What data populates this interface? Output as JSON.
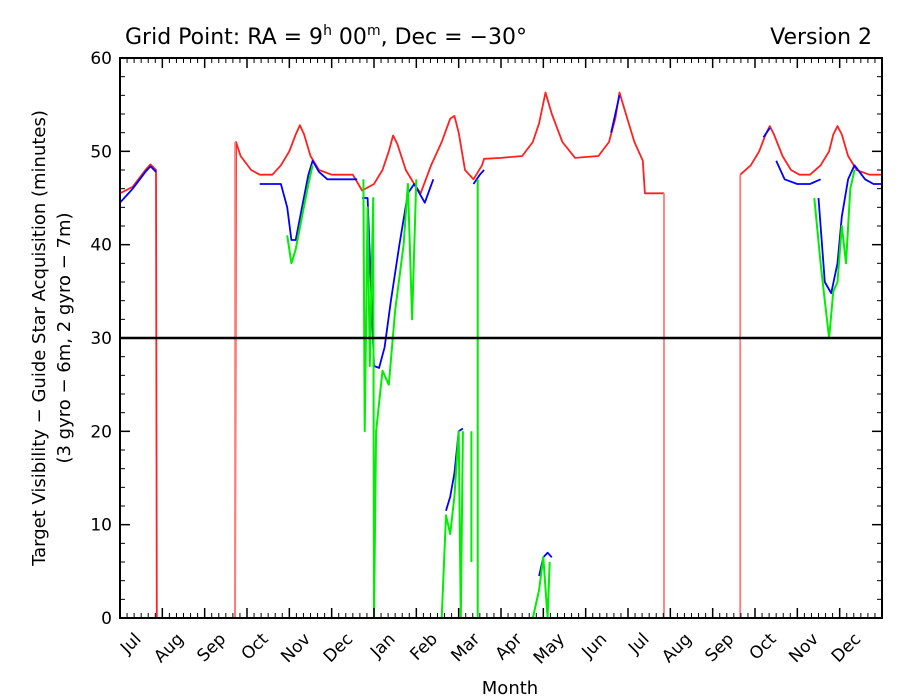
{
  "chart_data": {
    "type": "line",
    "title": {
      "prefix": "Grid Point: RA = 9",
      "h_sup": "h",
      "mid": " 00",
      "m_sup": "m",
      "suffix": ", Dec = −30°"
    },
    "version_label": "Version 2",
    "xlabel": "Month",
    "ylabel_line1": "Target Visibility − Guide Star Acquisition (minutes)",
    "ylabel_line2": "(3 gyro − 6m, 2 gyro − 7m)",
    "xlim": [
      0,
      18
    ],
    "ylim": [
      0,
      60
    ],
    "month_ticks": [
      "Jul",
      "Aug",
      "Sep",
      "Oct",
      "Nov",
      "Dec",
      "Jan",
      "Feb",
      "Mar",
      "Apr",
      "May",
      "Jun",
      "Jul",
      "Aug",
      "Sep",
      "Oct",
      "Nov",
      "Dec"
    ],
    "y_ticks": [
      0,
      10,
      20,
      30,
      40,
      50,
      60
    ],
    "threshold": 30,
    "colors": {
      "red": "#ff2020",
      "red_light": "#ff7a7a",
      "blue": "#0000ff",
      "green": "#00ee00",
      "black": "#000000"
    },
    "series": [
      {
        "color": "red",
        "segments": [
          [
            [
              0.0,
              45.5
            ],
            [
              0.3,
              46.2
            ],
            [
              0.6,
              48.0
            ],
            [
              0.72,
              48.6
            ],
            [
              0.85,
              48.0
            ],
            [
              0.87,
              0
            ]
          ],
          [
            [
              0.87,
              0
            ],
            [
              2.72,
              0
            ]
          ],
          [
            [
              2.72,
              0
            ],
            [
              2.74,
              51.0
            ],
            [
              2.85,
              49.5
            ],
            [
              3.1,
              48.0
            ],
            [
              3.3,
              47.5
            ],
            [
              3.6,
              47.5
            ],
            [
              3.8,
              48.5
            ],
            [
              4.0,
              50.0
            ],
            [
              4.15,
              51.8
            ],
            [
              4.25,
              52.8
            ],
            [
              4.35,
              51.8
            ],
            [
              4.5,
              49.5
            ],
            [
              4.7,
              48.0
            ],
            [
              5.0,
              47.5
            ],
            [
              5.5,
              47.5
            ],
            [
              5.72,
              45.8
            ],
            [
              6.0,
              46.5
            ],
            [
              6.2,
              48.0
            ],
            [
              6.35,
              50.0
            ],
            [
              6.45,
              51.7
            ],
            [
              6.55,
              50.8
            ],
            [
              6.75,
              48.0
            ],
            [
              6.95,
              46.5
            ],
            [
              7.1,
              45.5
            ],
            [
              7.35,
              48.5
            ],
            [
              7.6,
              51.0
            ],
            [
              7.8,
              53.5
            ],
            [
              7.9,
              53.8
            ],
            [
              8.0,
              52.0
            ],
            [
              8.15,
              48.0
            ],
            [
              8.35,
              47.0
            ],
            [
              8.55,
              48.5
            ],
            [
              8.6,
              49.2
            ],
            [
              9.0,
              49.3
            ],
            [
              9.5,
              49.5
            ],
            [
              9.75,
              51.0
            ],
            [
              9.9,
              53.0
            ],
            [
              10.05,
              56.3
            ],
            [
              10.2,
              54.0
            ],
            [
              10.45,
              51.0
            ],
            [
              10.75,
              49.3
            ],
            [
              11.3,
              49.5
            ],
            [
              11.55,
              51.0
            ],
            [
              11.7,
              53.5
            ],
            [
              11.8,
              56.3
            ],
            [
              11.95,
              54.0
            ],
            [
              12.15,
              51.0
            ],
            [
              12.35,
              49.0
            ],
            [
              12.4,
              45.5
            ],
            [
              12.85,
              45.5
            ]
          ],
          [
            [
              12.85,
              0
            ],
            [
              14.65,
              0
            ]
          ],
          [
            [
              14.65,
              47.5
            ],
            [
              14.9,
              48.5
            ],
            [
              15.1,
              50.0
            ],
            [
              15.25,
              51.8
            ],
            [
              15.35,
              52.7
            ],
            [
              15.45,
              51.8
            ],
            [
              15.65,
              49.5
            ],
            [
              15.85,
              48.0
            ],
            [
              16.05,
              47.5
            ],
            [
              16.3,
              47.5
            ],
            [
              16.55,
              48.5
            ],
            [
              16.75,
              50.0
            ],
            [
              16.85,
              51.8
            ],
            [
              16.95,
              52.7
            ],
            [
              17.05,
              51.8
            ],
            [
              17.2,
              49.5
            ],
            [
              17.4,
              48.0
            ],
            [
              17.7,
              47.5
            ],
            [
              18.0,
              47.5
            ]
          ]
        ]
      },
      {
        "color": "red_light",
        "segments": [
          [
            [
              2.72,
              0
            ],
            [
              2.72,
              51.0
            ]
          ],
          [
            [
              12.85,
              0
            ],
            [
              12.85,
              45.5
            ]
          ],
          [
            [
              14.65,
              0
            ],
            [
              14.65,
              47.5
            ]
          ],
          [
            [
              18.0,
              0
            ],
            [
              18.0,
              47.5
            ]
          ]
        ]
      },
      {
        "color": "blue",
        "segments": [
          [
            [
              0.0,
              44.5
            ],
            [
              0.3,
              46.0
            ],
            [
              0.6,
              47.8
            ],
            [
              0.72,
              48.4
            ],
            [
              0.85,
              47.8
            ]
          ],
          [
            [
              3.3,
              46.5
            ],
            [
              3.8,
              46.5
            ],
            [
              3.95,
              44.0
            ],
            [
              4.05,
              40.5
            ],
            [
              4.15,
              40.5
            ],
            [
              4.3,
              44.0
            ],
            [
              4.45,
              47.5
            ],
            [
              4.55,
              49.0
            ],
            [
              4.7,
              47.8
            ],
            [
              4.9,
              47.0
            ],
            [
              5.3,
              47.0
            ],
            [
              5.6,
              47.0
            ]
          ],
          [
            [
              5.72,
              45.0
            ],
            [
              5.85,
              45.0
            ],
            [
              6.0,
              27.0
            ],
            [
              6.12,
              26.8
            ],
            [
              6.25,
              29.0
            ],
            [
              6.4,
              34.0
            ],
            [
              6.6,
              40.0
            ],
            [
              6.8,
              45.5
            ],
            [
              6.95,
              46.5
            ],
            [
              7.2,
              44.5
            ],
            [
              7.4,
              47.0
            ]
          ],
          [
            [
              7.7,
              11.5
            ],
            [
              7.8,
              13.0
            ],
            [
              7.9,
              15.5
            ],
            [
              8.0,
              20.0
            ],
            [
              8.1,
              20.3
            ]
          ],
          [
            [
              8.35,
              46.5
            ],
            [
              8.5,
              47.5
            ],
            [
              8.6,
              48.0
            ]
          ],
          [
            [
              9.9,
              4.5
            ],
            [
              10.0,
              6.5
            ],
            [
              10.1,
              7.0
            ],
            [
              10.2,
              6.5
            ]
          ],
          [
            [
              11.6,
              52.0
            ],
            [
              11.8,
              56.0
            ]
          ],
          [
            [
              15.2,
              51.5
            ],
            [
              15.35,
              52.5
            ]
          ],
          [
            [
              15.5,
              49.0
            ],
            [
              15.7,
              47.0
            ],
            [
              16.0,
              46.5
            ],
            [
              16.3,
              46.5
            ],
            [
              16.55,
              47.0
            ]
          ],
          [
            [
              16.5,
              45.0
            ],
            [
              16.65,
              36.0
            ],
            [
              16.8,
              34.8
            ],
            [
              16.95,
              38.0
            ],
            [
              17.05,
              43.0
            ],
            [
              17.2,
              47.0
            ],
            [
              17.35,
              48.5
            ],
            [
              17.6,
              47.0
            ],
            [
              17.8,
              46.5
            ],
            [
              18.0,
              46.5
            ]
          ]
        ]
      },
      {
        "color": "green",
        "segments": [
          [
            [
              3.95,
              41.0
            ],
            [
              4.05,
              38.0
            ],
            [
              4.15,
              39.5
            ],
            [
              4.3,
              43.0
            ],
            [
              4.45,
              46.5
            ],
            [
              4.55,
              48.5
            ]
          ],
          [
            [
              5.75,
              47.0
            ],
            [
              5.78,
              20.0
            ],
            [
              5.85,
              44.0
            ],
            [
              5.9,
              27.0
            ],
            [
              5.98,
              45.0
            ],
            [
              6.0,
              0.0
            ],
            [
              6.05,
              20.0
            ],
            [
              6.2,
              26.5
            ],
            [
              6.35,
              25.0
            ],
            [
              6.5,
              33.0
            ],
            [
              6.7,
              40.0
            ],
            [
              6.8,
              46.5
            ],
            [
              6.9,
              32.0
            ],
            [
              7.0,
              47.0
            ]
          ],
          [
            [
              8.45,
              47.0
            ],
            [
              8.45,
              0.0
            ]
          ],
          [
            [
              7.6,
              0.0
            ],
            [
              7.7,
              11.0
            ],
            [
              7.8,
              9.0
            ],
            [
              7.9,
              13.0
            ],
            [
              8.0,
              20.0
            ],
            [
              8.05,
              0.0
            ],
            [
              8.1,
              20.0
            ]
          ],
          [
            [
              8.3,
              6.0
            ],
            [
              8.3,
              20.0
            ]
          ],
          [
            [
              9.75,
              0.0
            ],
            [
              9.9,
              3.0
            ],
            [
              10.0,
              6.5
            ],
            [
              10.1,
              0.0
            ],
            [
              10.15,
              6.0
            ]
          ],
          [
            [
              16.4,
              45.0
            ],
            [
              16.55,
              38.0
            ],
            [
              16.65,
              34.0
            ],
            [
              16.75,
              30.0
            ],
            [
              16.85,
              35.0
            ],
            [
              16.95,
              36.0
            ],
            [
              17.05,
              42.0
            ],
            [
              17.15,
              38.0
            ],
            [
              17.25,
              46.0
            ],
            [
              17.35,
              48.0
            ]
          ]
        ]
      },
      {
        "color": "black",
        "segments": [
          [
            [
              0.0,
              30.0
            ],
            [
              18.0,
              30.0
            ]
          ]
        ]
      }
    ]
  }
}
